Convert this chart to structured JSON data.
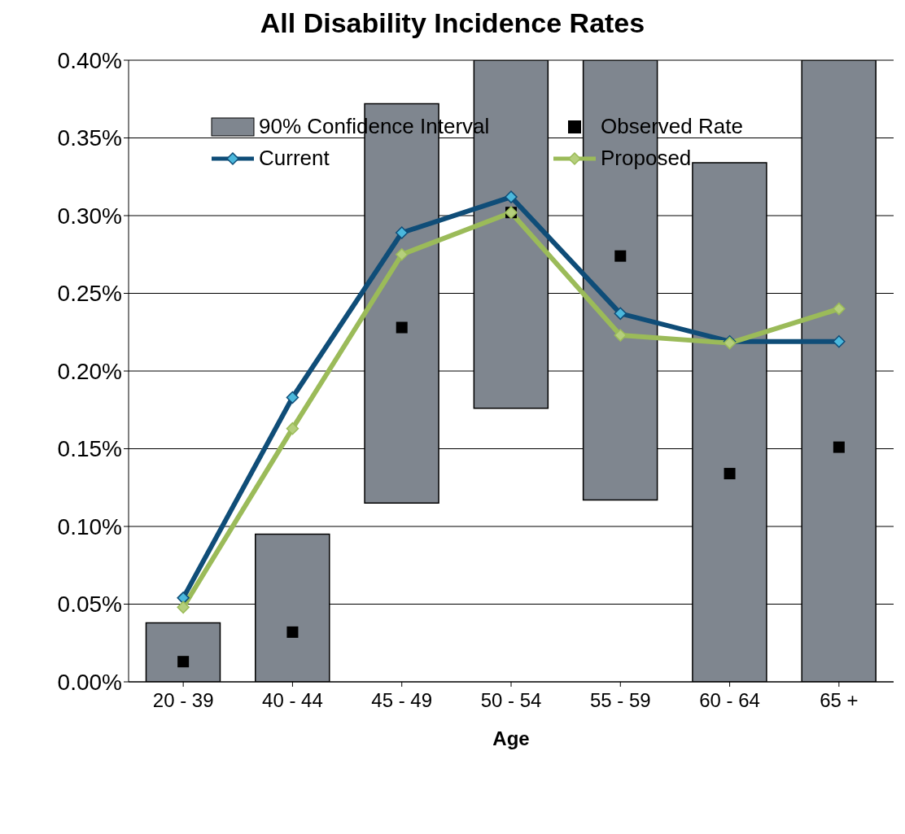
{
  "chart_data": {
    "type": "bar",
    "title": "All Disability Incidence Rates",
    "xlabel": "Age",
    "categories": [
      "20 - 39",
      "40 - 44",
      "45 - 49",
      "50 - 54",
      "55 - 59",
      "60 - 64",
      "65 +"
    ],
    "series": [
      {
        "name": "90% Confidence Interval",
        "color": "#7f868f",
        "base": [
          0,
          0,
          0.115,
          0.176,
          0.117,
          0,
          0
        ],
        "values": [
          0.038,
          0.095,
          0.257,
          0.224,
          0.283,
          0.334,
          0.4
        ]
      },
      {
        "name": "Observed Rate",
        "type": "scatter",
        "color": "#000000",
        "marker": "square",
        "values": [
          0.013,
          0.032,
          0.228,
          0.302,
          0.274,
          0.134,
          0.151
        ]
      },
      {
        "name": "Current",
        "type": "line",
        "color": "#0f4d78",
        "marker": "diamond",
        "values": [
          0.054,
          0.183,
          0.289,
          0.312,
          0.237,
          0.219,
          0.219
        ]
      },
      {
        "name": "Proposed",
        "type": "line",
        "color": "#9bbb59",
        "marker": "diamond",
        "values": [
          0.048,
          0.163,
          0.275,
          0.302,
          0.223,
          0.218,
          0.24
        ]
      }
    ],
    "ylim": [
      0,
      0.4
    ],
    "yticks": [
      {
        "value": 0,
        "label": "0.00%"
      },
      {
        "value": 0.05,
        "label": "0.05%"
      },
      {
        "value": 0.1,
        "label": "0.10%"
      },
      {
        "value": 0.15,
        "label": "0.15%"
      },
      {
        "value": 0.2,
        "label": "0.20%"
      },
      {
        "value": 0.25,
        "label": "0.25%"
      },
      {
        "value": 0.3,
        "label": "0.30%"
      },
      {
        "value": 0.35,
        "label": "0.35%"
      },
      {
        "value": 0.4,
        "label": "0.40%"
      }
    ],
    "grid": "y",
    "legend": "top"
  }
}
